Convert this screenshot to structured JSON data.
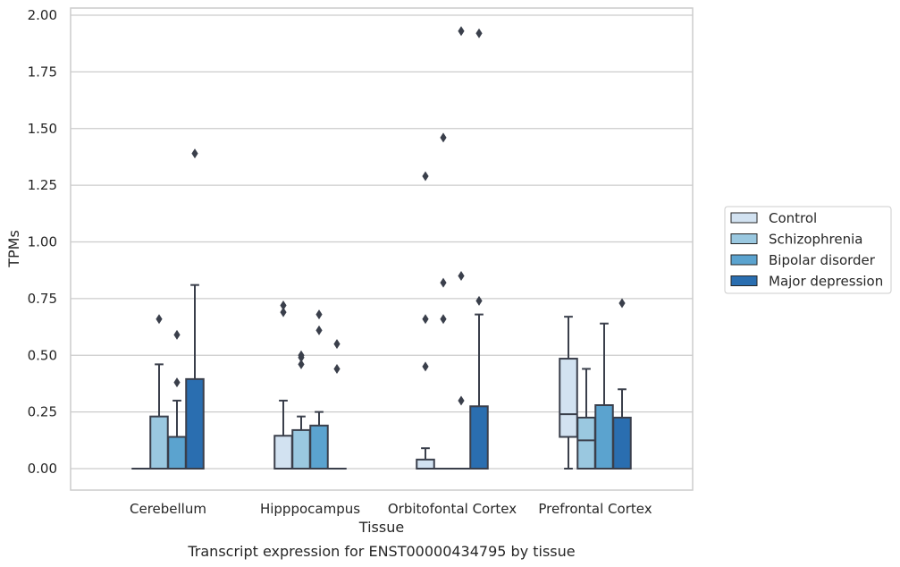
{
  "caption": "Transcript expression for ENST00000434795 by tissue",
  "colors": {
    "grid": "#cccccc",
    "frame": "#cccccc",
    "edge": "#3a3f4b",
    "outlier": "#3a3f4b",
    "background": "#ffffff"
  },
  "chart_data": {
    "type": "boxplot",
    "xlabel": "Tissue",
    "ylabel": "TPMs",
    "ylim": [
      -0.09,
      2.03
    ],
    "yticks": [
      0.0,
      0.25,
      0.5,
      0.75,
      1.0,
      1.25,
      1.5,
      1.75,
      2.0
    ],
    "ytick_labels": [
      "0.00",
      "0.25",
      "0.50",
      "0.75",
      "1.00",
      "1.25",
      "1.50",
      "1.75",
      "2.00"
    ],
    "grid": "horizontal",
    "legend_position": "right-center",
    "categories": [
      "Cerebellum",
      "Hipppocampus",
      "Orbitofontal Cortex",
      "Prefrontal Cortex"
    ],
    "series": [
      {
        "name": "Control",
        "color": "#d2e2f1",
        "boxes": [
          {
            "q1": 0.0,
            "median": 0.0,
            "q3": 0.0,
            "whislo": 0.0,
            "whishi": 0.0,
            "fliers": []
          },
          {
            "q1": 0.0,
            "median": 0.0,
            "q3": 0.145,
            "whislo": 0.0,
            "whishi": 0.3,
            "fliers": [
              0.72,
              0.69
            ]
          },
          {
            "q1": 0.0,
            "median": 0.0,
            "q3": 0.04,
            "whislo": 0.0,
            "whishi": 0.09,
            "fliers": [
              0.45,
              0.66,
              1.29
            ]
          },
          {
            "q1": 0.14,
            "median": 0.24,
            "q3": 0.485,
            "whislo": 0.0,
            "whishi": 0.67,
            "fliers": []
          }
        ]
      },
      {
        "name": "Schizophrenia",
        "color": "#9ac8e0",
        "boxes": [
          {
            "q1": 0.0,
            "median": 0.0,
            "q3": 0.23,
            "whislo": 0.0,
            "whishi": 0.46,
            "fliers": [
              0.66
            ]
          },
          {
            "q1": 0.0,
            "median": 0.0,
            "q3": 0.17,
            "whislo": 0.0,
            "whishi": 0.23,
            "fliers": [
              0.5,
              0.49,
              0.46
            ]
          },
          {
            "q1": 0.0,
            "median": 0.0,
            "q3": 0.0,
            "whislo": 0.0,
            "whishi": 0.0,
            "fliers": [
              0.66,
              0.82,
              1.46
            ]
          },
          {
            "q1": 0.0,
            "median": 0.125,
            "q3": 0.225,
            "whislo": 0.0,
            "whishi": 0.44,
            "fliers": []
          }
        ]
      },
      {
        "name": "Bipolar disorder",
        "color": "#5ba3cf",
        "boxes": [
          {
            "q1": 0.0,
            "median": 0.0,
            "q3": 0.14,
            "whislo": 0.0,
            "whishi": 0.3,
            "fliers": [
              0.38,
              0.59
            ]
          },
          {
            "q1": 0.0,
            "median": 0.0,
            "q3": 0.19,
            "whislo": 0.0,
            "whishi": 0.25,
            "fliers": [
              0.61,
              0.68
            ]
          },
          {
            "q1": 0.0,
            "median": 0.0,
            "q3": 0.0,
            "whislo": 0.0,
            "whishi": 0.0,
            "fliers": [
              0.3,
              0.85,
              1.93
            ]
          },
          {
            "q1": 0.0,
            "median": 0.0,
            "q3": 0.28,
            "whislo": 0.0,
            "whishi": 0.64,
            "fliers": []
          }
        ]
      },
      {
        "name": "Major depression",
        "color": "#2a6eb0",
        "boxes": [
          {
            "q1": 0.0,
            "median": 0.0,
            "q3": 0.395,
            "whislo": 0.0,
            "whishi": 0.81,
            "fliers": [
              1.39
            ]
          },
          {
            "q1": 0.0,
            "median": 0.0,
            "q3": 0.0,
            "whislo": 0.0,
            "whishi": 0.0,
            "fliers": [
              0.44,
              0.55
            ]
          },
          {
            "q1": 0.0,
            "median": 0.0,
            "q3": 0.275,
            "whislo": 0.0,
            "whishi": 0.68,
            "fliers": [
              0.74,
              1.92
            ]
          },
          {
            "q1": 0.0,
            "median": 0.0,
            "q3": 0.225,
            "whislo": 0.0,
            "whishi": 0.35,
            "fliers": [
              0.73
            ]
          }
        ]
      }
    ]
  }
}
